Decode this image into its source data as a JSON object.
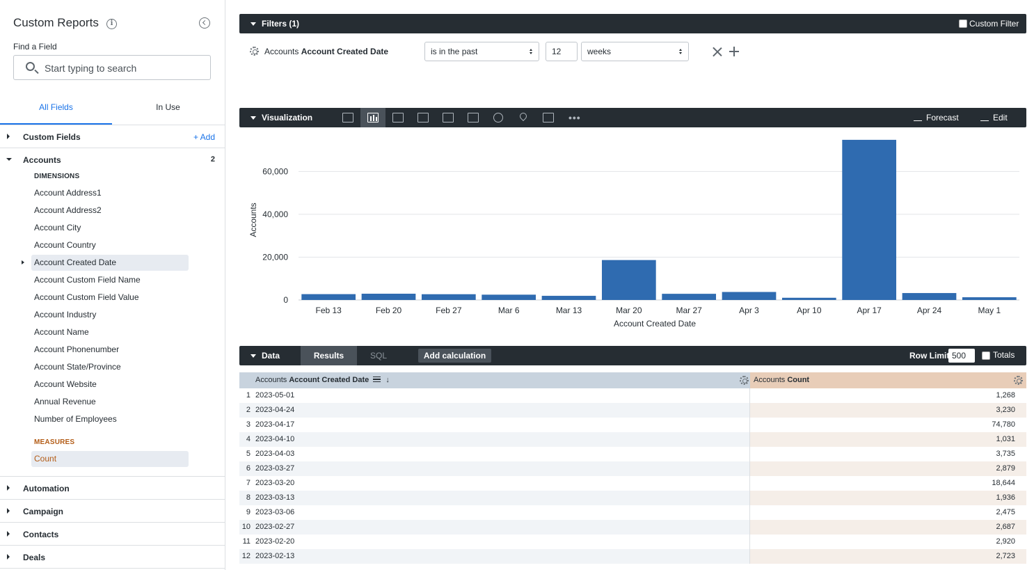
{
  "sidebar": {
    "title": "Custom Reports",
    "info_icon": "info-icon",
    "find_label": "Find a Field",
    "search_placeholder": "Start typing to search",
    "tabs": [
      "All Fields",
      "In Use"
    ],
    "custom_fields": {
      "label": "Custom Fields",
      "add_label": "+ Add"
    },
    "accounts": {
      "label": "Accounts",
      "count": "2"
    },
    "dimensions_label": "DIMENSIONS",
    "dimensions": [
      "Account Address1",
      "Account Address2",
      "Account City",
      "Account Country",
      "Account Created Date",
      "Account Custom Field Name",
      "Account Custom Field Value",
      "Account Industry",
      "Account Name",
      "Account Phonenumber",
      "Account State/Province",
      "Account Website",
      "Annual Revenue",
      "Number of Employees"
    ],
    "measures_label": "MEASURES",
    "measures": [
      "Count"
    ],
    "groups": [
      "Automation",
      "Campaign",
      "Contacts",
      "Deals"
    ]
  },
  "filters": {
    "title": "Filters (1)",
    "custom_filter_label": "Custom Filter",
    "field_prefix": "Accounts",
    "field_name": "Account Created Date",
    "operator": "is in the past",
    "value": "12",
    "unit": "weeks"
  },
  "visualization": {
    "title": "Visualization",
    "forecast_label": "Forecast",
    "edit_label": "Edit",
    "viz_icons": [
      "table-icon",
      "bar-chart-icon",
      "horizontal-bar-icon",
      "scatter-icon",
      "line-icon",
      "area-icon",
      "pie-icon",
      "map-pin-icon",
      "single-value-icon",
      "more-icon"
    ]
  },
  "chart_data": {
    "type": "bar",
    "categories": [
      "Feb 13",
      "Feb 20",
      "Feb 27",
      "Mar 6",
      "Mar 13",
      "Mar 20",
      "Mar 27",
      "Apr 3",
      "Apr 10",
      "Apr 17",
      "Apr 24",
      "May 1"
    ],
    "values": [
      2723,
      2920,
      2687,
      2475,
      1936,
      18644,
      2879,
      3735,
      1031,
      74780,
      3230,
      1268
    ],
    "xlabel": "Account Created Date",
    "ylabel": "Accounts",
    "yticks": [
      0,
      20000,
      40000,
      60000
    ],
    "ytick_labels": [
      "0",
      "20,000",
      "40,000",
      "60,000"
    ],
    "ylim": [
      0,
      78000
    ],
    "color": "#2f6bb0",
    "grid": true
  },
  "data": {
    "title": "Data",
    "results_tab": "Results",
    "sql_tab": "SQL",
    "add_calc_label": "Add calculation",
    "row_limit_label": "Row Limit",
    "row_limit_value": "500",
    "totals_label": "Totals",
    "col_date_prefix": "Accounts",
    "col_date_name": "Account Created Date",
    "col_count_prefix": "Accounts",
    "col_count_name": "Count",
    "rows": [
      {
        "idx": "1",
        "date": "2023-05-01",
        "count": "1,268"
      },
      {
        "idx": "2",
        "date": "2023-04-24",
        "count": "3,230"
      },
      {
        "idx": "3",
        "date": "2023-04-17",
        "count": "74,780"
      },
      {
        "idx": "4",
        "date": "2023-04-10",
        "count": "1,031"
      },
      {
        "idx": "5",
        "date": "2023-04-03",
        "count": "3,735"
      },
      {
        "idx": "6",
        "date": "2023-03-27",
        "count": "2,879"
      },
      {
        "idx": "7",
        "date": "2023-03-20",
        "count": "18,644"
      },
      {
        "idx": "8",
        "date": "2023-03-13",
        "count": "1,936"
      },
      {
        "idx": "9",
        "date": "2023-03-06",
        "count": "2,475"
      },
      {
        "idx": "10",
        "date": "2023-02-27",
        "count": "2,687"
      },
      {
        "idx": "11",
        "date": "2023-02-20",
        "count": "2,920"
      },
      {
        "idx": "12",
        "date": "2023-02-13",
        "count": "2,723"
      }
    ]
  }
}
